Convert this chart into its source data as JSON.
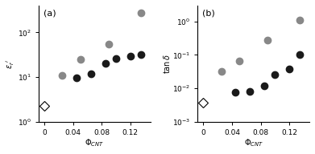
{
  "panel_a": {
    "label": "(a)",
    "ylabel": "$\\varepsilon_r$$'$",
    "xlabel": "$\\Phi_{CNT}$",
    "ylim": [
      1.0,
      400
    ],
    "xlim": [
      -0.008,
      0.148
    ],
    "xticks": [
      0,
      0.04,
      0.08,
      0.12
    ],
    "yticks": [
      1,
      10,
      100
    ],
    "ytick_labels": [
      "$10^0$",
      "$10^1$",
      "$10^2$"
    ],
    "diamond_x": [
      0
    ],
    "diamond_y": [
      2.3
    ],
    "gray_x": [
      0.025,
      0.05,
      0.09,
      0.135
    ],
    "gray_y": [
      11,
      25,
      55,
      280
    ],
    "black_x": [
      0.045,
      0.065,
      0.085,
      0.1,
      0.12,
      0.135
    ],
    "black_y": [
      9.5,
      12,
      20,
      26,
      30,
      32
    ]
  },
  "panel_b": {
    "label": "(b)",
    "ylabel": "$\\tan\\delta$",
    "xlabel": "$\\Phi_{CNT}$",
    "ylim": [
      0.001,
      3.0
    ],
    "xlim": [
      -0.008,
      0.148
    ],
    "xticks": [
      0,
      0.04,
      0.08,
      0.12
    ],
    "yticks": [
      0.001,
      0.01,
      0.1,
      1.0
    ],
    "ytick_labels": [
      "$10^{-3}$",
      "$10^{-2}$",
      "$10^{-1}$",
      "$10^0$"
    ],
    "diamond_x": [
      0
    ],
    "diamond_y": [
      0.0038
    ],
    "gray_x": [
      0.025,
      0.05,
      0.09,
      0.135
    ],
    "gray_y": [
      0.033,
      0.065,
      0.28,
      1.1
    ],
    "black_x": [
      0.045,
      0.065,
      0.085,
      0.1,
      0.12,
      0.135
    ],
    "black_y": [
      0.0075,
      0.008,
      0.012,
      0.026,
      0.038,
      0.1
    ]
  },
  "gray_color": "#888888",
  "black_color": "#1a1a1a",
  "marker_size": 6,
  "diamond_size": 6,
  "bg_color": "#ffffff",
  "label_fontsize": 7,
  "tick_fontsize": 6.5,
  "panel_label_fontsize": 8
}
